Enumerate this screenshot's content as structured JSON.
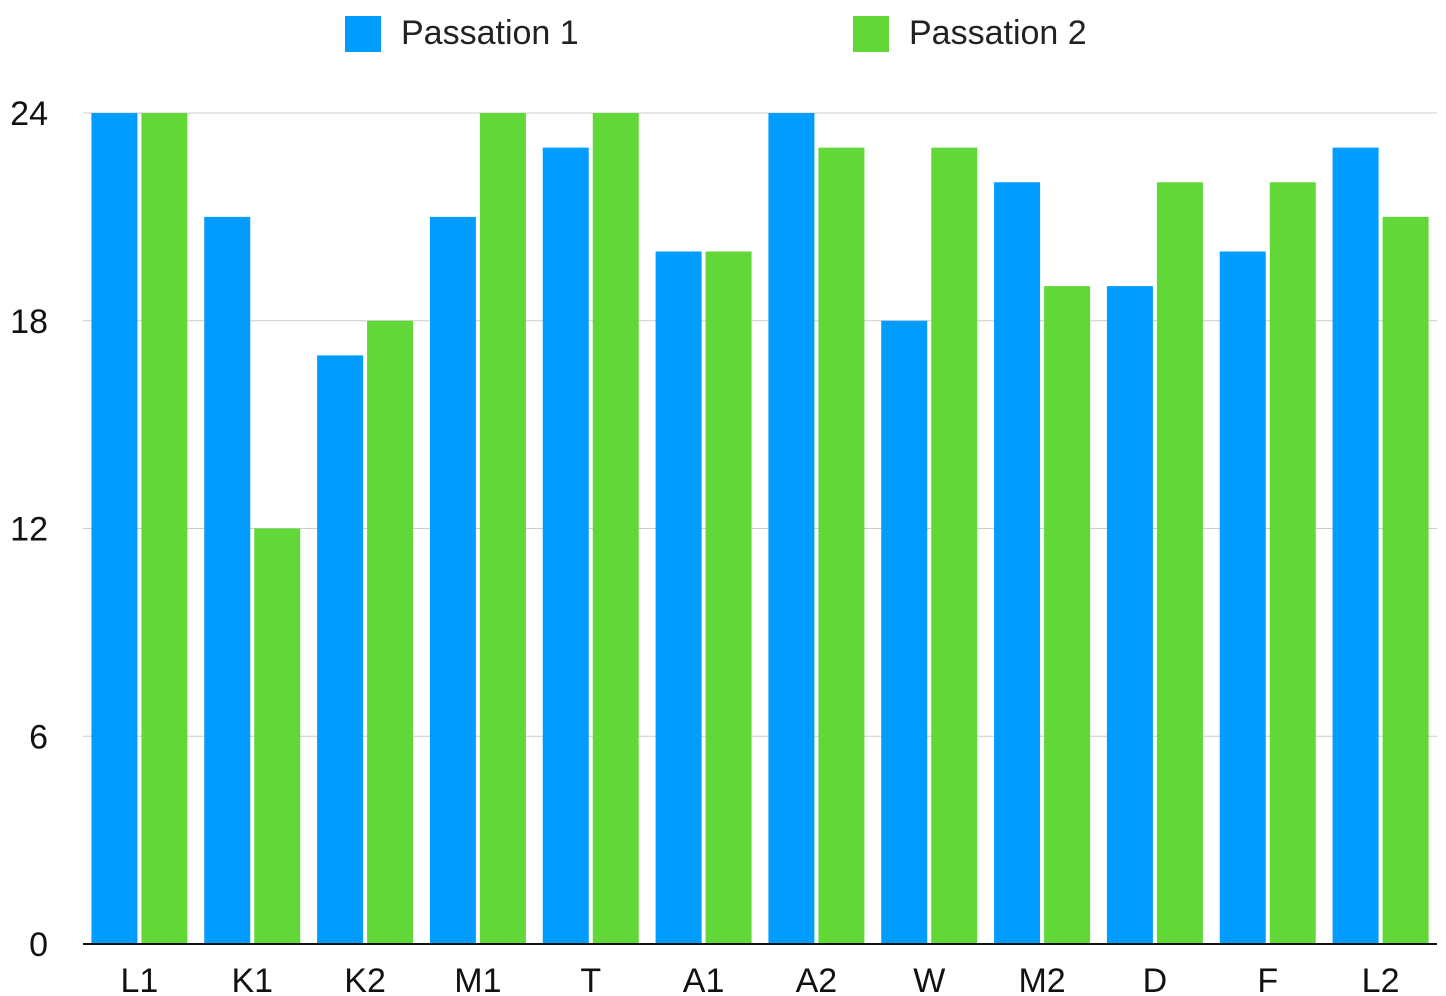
{
  "chart_data": {
    "type": "bar",
    "categories": [
      "L1",
      "K1",
      "K2",
      "M1",
      "T",
      "A1",
      "A2",
      "W",
      "M2",
      "D",
      "F",
      "L2"
    ],
    "series": [
      {
        "name": "Passation 1",
        "color": "#009cff",
        "values": [
          24,
          21,
          17,
          21,
          23,
          20,
          24,
          18,
          22,
          19,
          20,
          23
        ]
      },
      {
        "name": "Passation 2",
        "color": "#62d838",
        "values": [
          24,
          12,
          18,
          24,
          24,
          20,
          23,
          23,
          19,
          22,
          22,
          21
        ]
      }
    ],
    "yticks": [
      "0",
      "6",
      "12",
      "18",
      "24"
    ],
    "ylim": [
      0,
      24
    ],
    "title": "",
    "xlabel": "",
    "ylabel": "",
    "legend_position": "top",
    "grid": true
  }
}
